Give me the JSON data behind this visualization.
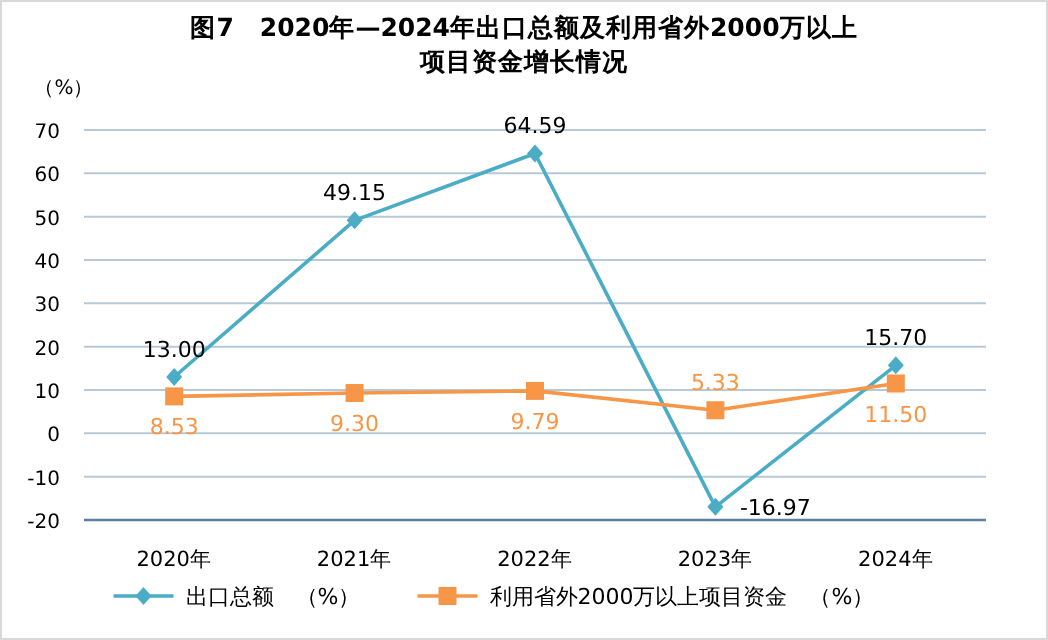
{
  "chart_data": {
    "type": "line",
    "title": "图7　2020年—2024年出口总额及利用省外2000万以上项目资金增长情况",
    "ylabel": "（%）",
    "categories": [
      "2020年",
      "2021年",
      "2022年",
      "2023年",
      "2024年"
    ],
    "series": [
      {
        "name": "出口总额　（%）",
        "color": "#4bacc6",
        "marker": "diamond",
        "values": [
          13.0,
          49.15,
          64.59,
          -16.97,
          15.7
        ],
        "value_labels": [
          "13.00",
          "49.15",
          "64.59",
          "-16.97",
          "15.70"
        ]
      },
      {
        "name": "利用省外2000万以上项目资金　（%）",
        "color": "#f79646",
        "marker": "square",
        "values": [
          8.53,
          9.3,
          9.79,
          5.33,
          11.5
        ],
        "value_labels": [
          "8.53",
          "9.30",
          "9.79",
          "5.33",
          "11.50"
        ]
      }
    ],
    "ylim": [
      -20,
      70
    ],
    "yticks": [
      -20,
      -10,
      0,
      10,
      20,
      30,
      40,
      50,
      60,
      70
    ],
    "grid": "y",
    "legend": "bottom"
  }
}
